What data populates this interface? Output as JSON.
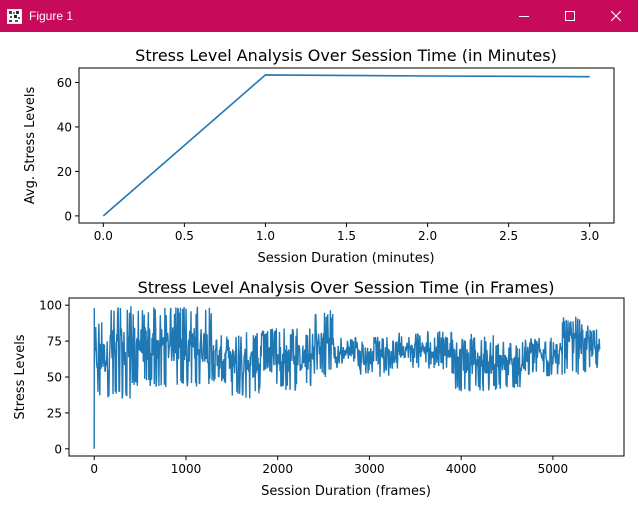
{
  "window": {
    "title": "Figure 1",
    "title_bar_color": "#c70a5a",
    "icons": {
      "app": "matplotlib-figure-icon",
      "minimize": "minimize-icon",
      "maximize": "maximize-icon",
      "close": "close-icon"
    }
  },
  "chart_data": [
    {
      "type": "line",
      "title": "Stress Level Analysis Over Session Time (in Minutes)",
      "xlabel": "Session Duration (minutes)",
      "ylabel": "Avg. Stress Levels",
      "xlim": [
        -0.15,
        3.15
      ],
      "ylim": [
        -3.2,
        66.5
      ],
      "xticks": [
        0.0,
        0.5,
        1.0,
        1.5,
        2.0,
        2.5,
        3.0
      ],
      "xtick_labels": [
        "0.0",
        "0.5",
        "1.0",
        "1.5",
        "2.0",
        "2.5",
        "3.0"
      ],
      "yticks": [
        0,
        20,
        40,
        60
      ],
      "ytick_labels": [
        "0",
        "20",
        "40",
        "60"
      ],
      "grid": false,
      "color": "#1f77b4",
      "series": [
        {
          "x": [
            0,
            1,
            2,
            3
          ],
          "y": [
            0,
            63.4,
            62.9,
            62.6
          ]
        }
      ]
    },
    {
      "type": "line",
      "title": "Stress Level Analysis Over Session Time (in Frames)",
      "xlabel": "Session Duration (frames)",
      "ylabel": "Stress Levels",
      "xlim": [
        -275,
        5775
      ],
      "ylim": [
        -5,
        105
      ],
      "xticks": [
        0,
        1000,
        2000,
        3000,
        4000,
        5000
      ],
      "xtick_labels": [
        "0",
        "1000",
        "2000",
        "3000",
        "4000",
        "5000"
      ],
      "yticks": [
        0,
        25,
        50,
        75,
        100
      ],
      "ytick_labels": [
        "0",
        "25",
        "50",
        "75",
        "100"
      ],
      "grid": false,
      "color": "#1f77b4",
      "frame_count": 5520,
      "segments": [
        {
          "x": [
            0,
            1
          ],
          "y": [
            0,
            98
          ]
        },
        {
          "x": [
            1,
            150
          ],
          "min": 35,
          "max": 90
        },
        {
          "x": [
            150,
            400
          ],
          "min": 35,
          "max": 100
        },
        {
          "x": [
            400,
            1300
          ],
          "min": 43,
          "max": 99
        },
        {
          "x": [
            1300,
            1500
          ],
          "min": 45,
          "max": 80
        },
        {
          "x": [
            1500,
            1800
          ],
          "min": 35,
          "max": 82
        },
        {
          "x": [
            1800,
            2400
          ],
          "min": 40,
          "max": 84
        },
        {
          "x": [
            2400,
            2600
          ],
          "min": 50,
          "max": 97
        },
        {
          "x": [
            2600,
            2900
          ],
          "min": 55,
          "max": 78
        },
        {
          "x": [
            2900,
            3300
          ],
          "min": 50,
          "max": 78
        },
        {
          "x": [
            3300,
            3900
          ],
          "min": 55,
          "max": 82
        },
        {
          "x": [
            3900,
            4350
          ],
          "min": 40,
          "max": 80
        },
        {
          "x": [
            4350,
            4700
          ],
          "min": 40,
          "max": 75
        },
        {
          "x": [
            4700,
            5100
          ],
          "min": 50,
          "max": 78
        },
        {
          "x": [
            5100,
            5300
          ],
          "min": 50,
          "max": 92
        },
        {
          "x": [
            5300,
            5510
          ],
          "min": 53,
          "max": 87
        }
      ]
    }
  ]
}
